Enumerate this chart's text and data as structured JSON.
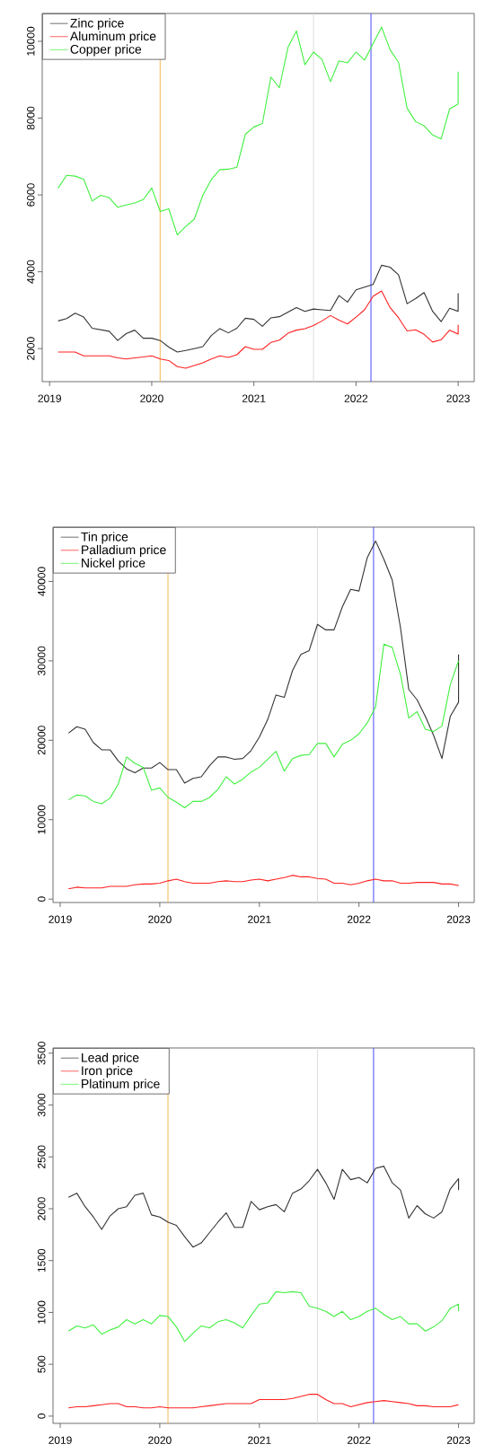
{
  "chart_data": [
    {
      "type": "line",
      "x": [
        "2019-02",
        "2019-03",
        "2019-04",
        "2019-05",
        "2019-06",
        "2019-07",
        "2019-08",
        "2019-09",
        "2019-10",
        "2019-11",
        "2019-12",
        "2020-01",
        "2020-02",
        "2020-03",
        "2020-04",
        "2020-05",
        "2020-06",
        "2020-07",
        "2020-08",
        "2020-09",
        "2020-10",
        "2020-11",
        "2020-12",
        "2021-01",
        "2021-02",
        "2021-03",
        "2021-04",
        "2021-05",
        "2021-06",
        "2021-07",
        "2021-08",
        "2021-09",
        "2021-10",
        "2021-11",
        "2021-12",
        "2022-01",
        "2022-02",
        "2022-03",
        "2022-04",
        "2022-05",
        "2022-06",
        "2022-07",
        "2022-08",
        "2022-09",
        "2022-10",
        "2022-11",
        "2022-12",
        "2023-01",
        "2023-01"
      ],
      "series": [
        {
          "name": "Zinc price",
          "color": "#333333",
          "values": [
            2720,
            2780,
            2920,
            2820,
            2530,
            2490,
            2450,
            2210,
            2390,
            2480,
            2270,
            2270,
            2210,
            2040,
            1910,
            1950,
            2000,
            2050,
            2340,
            2520,
            2410,
            2530,
            2790,
            2760,
            2580,
            2800,
            2830,
            2950,
            3070,
            2970,
            3030,
            3010,
            2990,
            3380,
            3210,
            3530,
            3600,
            3670,
            4170,
            4120,
            3920,
            3170,
            3300,
            3460,
            2970,
            2700,
            3050,
            2970,
            3440
          ]
        },
        {
          "name": "Aluminum price",
          "color": "#ff2020",
          "values": [
            1910,
            1910,
            1910,
            1810,
            1810,
            1810,
            1810,
            1760,
            1730,
            1760,
            1780,
            1810,
            1730,
            1690,
            1530,
            1490,
            1560,
            1630,
            1730,
            1810,
            1770,
            1840,
            2050,
            1980,
            1980,
            2160,
            2220,
            2400,
            2480,
            2520,
            2600,
            2720,
            2860,
            2740,
            2640,
            2820,
            3010,
            3360,
            3500,
            3070,
            2800,
            2460,
            2490,
            2370,
            2170,
            2230,
            2480,
            2380,
            2620
          ]
        },
        {
          "name": "Copper price",
          "color": "#40f040",
          "values": [
            6180,
            6510,
            6490,
            6410,
            5840,
            5990,
            5930,
            5680,
            5740,
            5790,
            5880,
            6180,
            5570,
            5640,
            4960,
            5180,
            5370,
            5990,
            6400,
            6660,
            6670,
            6720,
            7580,
            7770,
            7860,
            9070,
            8790,
            9840,
            10270,
            9390,
            9720,
            9530,
            8950,
            9490,
            9440,
            9720,
            9510,
            9940,
            10370,
            9780,
            9450,
            8260,
            7910,
            7800,
            7560,
            7460,
            8240,
            8370,
            9210
          ]
        }
      ],
      "xlim": [
        "2018-12-05",
        "2023-02-28"
      ],
      "xticks": [
        "2019",
        "2020",
        "2021",
        "2022",
        "2023"
      ],
      "ylim": [
        1139,
        10725
      ],
      "yticks": [
        2000,
        4000,
        6000,
        8000,
        10000
      ],
      "ref_lines": [
        {
          "axis": "x",
          "value": "2020-01-31",
          "color": "#f5b041"
        },
        {
          "axis": "x",
          "value": "2021-08-01",
          "color": "#d9d9d9"
        },
        {
          "axis": "x",
          "value": "2022-02-24",
          "color": "#3333ff"
        }
      ],
      "legend": "top left"
    },
    {
      "type": "line",
      "x": [
        "2019-02",
        "2019-03",
        "2019-04",
        "2019-05",
        "2019-06",
        "2019-07",
        "2019-08",
        "2019-09",
        "2019-10",
        "2019-11",
        "2019-12",
        "2020-01",
        "2020-02",
        "2020-03",
        "2020-04",
        "2020-05",
        "2020-06",
        "2020-07",
        "2020-08",
        "2020-09",
        "2020-10",
        "2020-11",
        "2020-12",
        "2021-01",
        "2021-02",
        "2021-03",
        "2021-04",
        "2021-05",
        "2021-06",
        "2021-07",
        "2021-08",
        "2021-09",
        "2021-10",
        "2021-11",
        "2021-12",
        "2022-01",
        "2022-02",
        "2022-03",
        "2022-04",
        "2022-05",
        "2022-06",
        "2022-07",
        "2022-08",
        "2022-09",
        "2022-10",
        "2022-11",
        "2022-12",
        "2023-01",
        "2023-01"
      ],
      "series": [
        {
          "name": "Tin price",
          "color": "#333333",
          "values": [
            20900,
            21700,
            21400,
            19700,
            18800,
            18800,
            17400,
            16400,
            15900,
            16500,
            16500,
            17200,
            16300,
            16300,
            14600,
            15200,
            15400,
            16800,
            17900,
            17900,
            17600,
            17700,
            18700,
            20400,
            22600,
            25700,
            25400,
            28800,
            30800,
            31300,
            34600,
            33900,
            33900,
            36800,
            39000,
            38800,
            43000,
            45100,
            42800,
            40200,
            34200,
            26400,
            25100,
            23000,
            20600,
            17700,
            23000,
            24800,
            30800
          ]
        },
        {
          "name": "Palladium price",
          "color": "#ff2020",
          "values": [
            1300,
            1500,
            1400,
            1400,
            1400,
            1600,
            1600,
            1600,
            1800,
            1900,
            1900,
            2000,
            2300,
            2500,
            2200,
            2000,
            2000,
            2000,
            2200,
            2300,
            2200,
            2200,
            2400,
            2500,
            2300,
            2500,
            2700,
            3000,
            2800,
            2800,
            2600,
            2500,
            2000,
            2000,
            1800,
            2000,
            2300,
            2500,
            2300,
            2300,
            2000,
            2000,
            2100,
            2100,
            2100,
            1900,
            1900,
            1700,
            null
          ]
        },
        {
          "name": "Nickel price",
          "color": "#40f040",
          "values": [
            12500,
            13100,
            13000,
            12300,
            12000,
            12700,
            14500,
            17900,
            17100,
            16600,
            13700,
            14000,
            12800,
            12200,
            11500,
            12300,
            12300,
            12800,
            13800,
            15400,
            14500,
            15100,
            16000,
            16600,
            17600,
            18600,
            16100,
            17700,
            18100,
            18200,
            19600,
            19600,
            17900,
            19500,
            20000,
            20800,
            22200,
            24200,
            32100,
            31700,
            28300,
            22800,
            23600,
            21400,
            21100,
            21800,
            27000,
            30000,
            null
          ]
        }
      ],
      "xlim": [
        "2018-12-05",
        "2023-02-28"
      ],
      "xticks": [
        "2019",
        "2020",
        "2021",
        "2022",
        "2023"
      ],
      "ylim": [
        -431,
        46841
      ],
      "yticks": [
        0,
        10000,
        20000,
        30000,
        40000
      ],
      "ref_lines": [
        {
          "axis": "x",
          "value": "2020-01-31",
          "color": "#f5b041"
        },
        {
          "axis": "x",
          "value": "2021-08-01",
          "color": "#d9d9d9"
        },
        {
          "axis": "x",
          "value": "2022-02-24",
          "color": "#3333ff"
        }
      ],
      "legend": "top left"
    },
    {
      "type": "line",
      "x": [
        "2019-02",
        "2019-03",
        "2019-04",
        "2019-05",
        "2019-06",
        "2019-07",
        "2019-08",
        "2019-09",
        "2019-10",
        "2019-11",
        "2019-12",
        "2020-01",
        "2020-02",
        "2020-03",
        "2020-04",
        "2020-05",
        "2020-06",
        "2020-07",
        "2020-08",
        "2020-09",
        "2020-10",
        "2020-11",
        "2020-12",
        "2021-01",
        "2021-02",
        "2021-03",
        "2021-04",
        "2021-05",
        "2021-06",
        "2021-07",
        "2021-08",
        "2021-09",
        "2021-10",
        "2021-11",
        "2021-12",
        "2022-01",
        "2022-02",
        "2022-03",
        "2022-04",
        "2022-05",
        "2022-06",
        "2022-07",
        "2022-08",
        "2022-09",
        "2022-10",
        "2022-11",
        "2022-12",
        "2023-01",
        "2023-01"
      ],
      "series": [
        {
          "name": "Lead price",
          "color": "#333333",
          "values": [
            2110,
            2150,
            2020,
            1920,
            1800,
            1930,
            2000,
            2020,
            2130,
            2150,
            1940,
            1920,
            1870,
            1840,
            1730,
            1630,
            1670,
            1770,
            1870,
            1960,
            1820,
            1820,
            2070,
            1990,
            2020,
            2040,
            1970,
            2150,
            2190,
            2270,
            2380,
            2250,
            2090,
            2380,
            2280,
            2300,
            2250,
            2390,
            2410,
            2250,
            2180,
            1910,
            2030,
            1950,
            1910,
            1970,
            2190,
            2290,
            2180
          ]
        },
        {
          "name": "Iron price",
          "color": "#ff2020",
          "values": [
            80,
            90,
            90,
            100,
            110,
            120,
            120,
            90,
            90,
            80,
            80,
            90,
            80,
            80,
            80,
            80,
            90,
            100,
            110,
            120,
            120,
            120,
            120,
            160,
            160,
            160,
            160,
            170,
            190,
            210,
            210,
            160,
            120,
            120,
            90,
            110,
            130,
            140,
            150,
            140,
            130,
            120,
            100,
            100,
            90,
            90,
            90,
            110,
            null
          ]
        },
        {
          "name": "Platinum price",
          "color": "#40f040",
          "values": [
            820,
            870,
            850,
            880,
            790,
            830,
            860,
            930,
            890,
            930,
            890,
            970,
            960,
            860,
            720,
            800,
            870,
            850,
            910,
            930,
            900,
            850,
            970,
            1080,
            1090,
            1200,
            1190,
            1200,
            1190,
            1060,
            1040,
            1010,
            960,
            1010,
            930,
            960,
            1010,
            1040,
            980,
            930,
            960,
            890,
            890,
            820,
            860,
            920,
            1040,
            1080,
            1010
          ]
        }
      ],
      "xlim": [
        "2018-12-05",
        "2023-02-28"
      ],
      "xticks": [
        "2019",
        "2020",
        "2021",
        "2022",
        "2023"
      ],
      "ylim": [
        -70,
        3550
      ],
      "yticks": [
        0,
        500,
        1000,
        1500,
        2000,
        2500,
        3000,
        3500
      ],
      "ref_lines": [
        {
          "axis": "x",
          "value": "2020-01-31",
          "color": "#f5b041"
        },
        {
          "axis": "x",
          "value": "2021-08-01",
          "color": "#d9d9d9"
        },
        {
          "axis": "x",
          "value": "2022-02-24",
          "color": "#3333ff"
        }
      ],
      "legend": "top left"
    }
  ]
}
